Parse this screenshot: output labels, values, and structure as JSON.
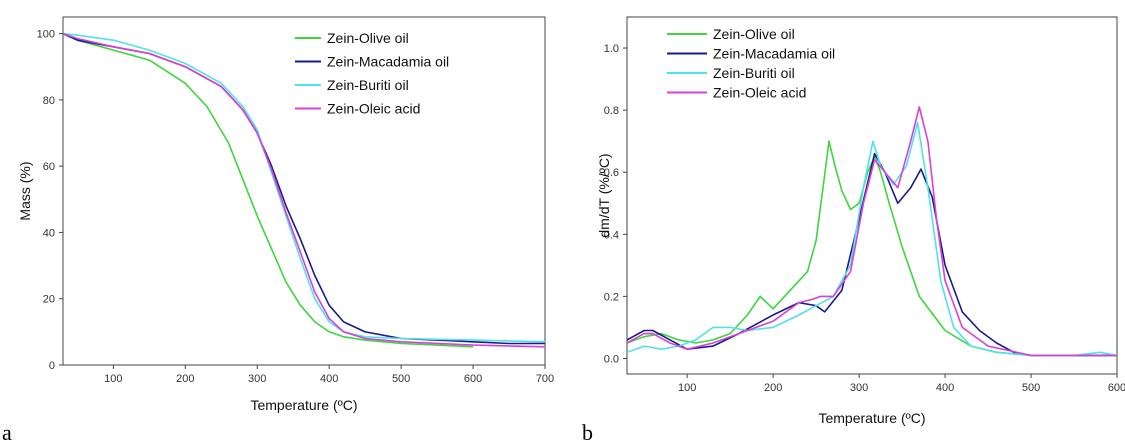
{
  "colors": {
    "Zein-Olive oil": "#3dd63d",
    "Zein-Macadamia oil": "#1a1a8c",
    "Zein-Buriti oil": "#4fe3e8",
    "Zein-Oleic acid": "#d93fd9"
  },
  "chart_data": [
    {
      "panel_label": "a",
      "type": "line",
      "title": "",
      "xlabel": "Temperature (ºC)",
      "ylabel": "Mass (%)",
      "xlim": [
        30,
        700
      ],
      "ylim": [
        0,
        105
      ],
      "xticks": [
        100,
        200,
        300,
        400,
        500,
        600,
        700
      ],
      "yticks": [
        0,
        20,
        40,
        60,
        80,
        100
      ],
      "grid": false,
      "legend_position": "top-right",
      "series": [
        {
          "name": "Zein-Olive oil",
          "x": [
            30,
            50,
            100,
            150,
            200,
            230,
            260,
            280,
            300,
            320,
            340,
            360,
            380,
            400,
            420,
            450,
            500,
            550,
            600
          ],
          "y": [
            100,
            98,
            95,
            92,
            85,
            78,
            67,
            56,
            45,
            35,
            25,
            18,
            13,
            10,
            8.5,
            7.5,
            6.5,
            6,
            5.5
          ]
        },
        {
          "name": "Zein-Macadamia oil",
          "x": [
            30,
            50,
            100,
            150,
            200,
            250,
            280,
            300,
            320,
            340,
            360,
            380,
            400,
            420,
            450,
            500,
            550,
            600,
            650,
            700
          ],
          "y": [
            100,
            98,
            96,
            94,
            90,
            84,
            77,
            70,
            60,
            48,
            38,
            27,
            18,
            13,
            10,
            8,
            7.5,
            7,
            6.5,
            6.5
          ]
        },
        {
          "name": "Zein-Buriti oil",
          "x": [
            30,
            50,
            100,
            150,
            200,
            250,
            280,
            300,
            320,
            340,
            360,
            380,
            400,
            420,
            450,
            500,
            600,
            700
          ],
          "y": [
            100,
            99.5,
            98,
            95,
            91,
            85,
            78,
            71,
            58,
            45,
            32,
            20,
            13,
            10,
            8.5,
            8,
            7.5,
            7
          ]
        },
        {
          "name": "Zein-Oleic acid",
          "x": [
            30,
            50,
            100,
            150,
            200,
            250,
            280,
            300,
            320,
            340,
            360,
            380,
            400,
            420,
            450,
            500,
            600,
            700
          ],
          "y": [
            100,
            98.5,
            96,
            94,
            90,
            84,
            77,
            70,
            59,
            46,
            34,
            22,
            14,
            10,
            8,
            7,
            6,
            5.5
          ]
        }
      ]
    },
    {
      "panel_label": "b",
      "type": "line",
      "title": "",
      "xlabel": "Temperature (ºC)",
      "ylabel": "dm/dT (%/ºC)",
      "xlim": [
        30,
        600
      ],
      "ylim": [
        -0.05,
        1.1
      ],
      "xticks": [
        100,
        200,
        300,
        400,
        500,
        600
      ],
      "yticks": [
        0.0,
        0.2,
        0.4,
        0.6,
        0.8,
        1.0
      ],
      "grid": false,
      "legend_position": "top-left",
      "series": [
        {
          "name": "Zein-Olive oil",
          "x": [
            30,
            50,
            70,
            90,
            110,
            130,
            150,
            170,
            185,
            200,
            220,
            240,
            250,
            258,
            265,
            272,
            280,
            290,
            300,
            310,
            318,
            325,
            335,
            350,
            370,
            400,
            430,
            460,
            500,
            550,
            600
          ],
          "y": [
            0.05,
            0.07,
            0.08,
            0.06,
            0.05,
            0.06,
            0.08,
            0.14,
            0.2,
            0.16,
            0.22,
            0.28,
            0.38,
            0.55,
            0.7,
            0.62,
            0.54,
            0.48,
            0.5,
            0.6,
            0.65,
            0.6,
            0.5,
            0.36,
            0.2,
            0.09,
            0.04,
            0.02,
            0.01,
            0.01,
            0.01
          ]
        },
        {
          "name": "Zein-Macadamia oil",
          "x": [
            30,
            50,
            60,
            80,
            100,
            130,
            160,
            200,
            230,
            250,
            260,
            280,
            300,
            318,
            330,
            345,
            360,
            372,
            385,
            400,
            420,
            440,
            460,
            480,
            500,
            550,
            600
          ],
          "y": [
            0.06,
            0.09,
            0.09,
            0.06,
            0.03,
            0.04,
            0.08,
            0.14,
            0.18,
            0.17,
            0.15,
            0.22,
            0.45,
            0.66,
            0.6,
            0.5,
            0.55,
            0.61,
            0.52,
            0.3,
            0.15,
            0.09,
            0.05,
            0.02,
            0.01,
            0.01,
            0.01
          ]
        },
        {
          "name": "Zein-Buriti oil",
          "x": [
            30,
            50,
            70,
            90,
            110,
            130,
            150,
            170,
            200,
            230,
            250,
            270,
            290,
            305,
            316,
            325,
            340,
            355,
            368,
            380,
            395,
            410,
            430,
            460,
            500,
            550,
            580,
            600
          ],
          "y": [
            0.02,
            0.04,
            0.03,
            0.04,
            0.06,
            0.1,
            0.1,
            0.09,
            0.1,
            0.14,
            0.17,
            0.2,
            0.3,
            0.55,
            0.7,
            0.62,
            0.56,
            0.62,
            0.76,
            0.55,
            0.25,
            0.1,
            0.04,
            0.02,
            0.01,
            0.01,
            0.02,
            0.01
          ]
        },
        {
          "name": "Zein-Oleic acid",
          "x": [
            30,
            50,
            60,
            80,
            100,
            130,
            160,
            200,
            230,
            245,
            255,
            270,
            290,
            305,
            318,
            330,
            345,
            360,
            370,
            380,
            390,
            400,
            420,
            450,
            500,
            550,
            600
          ],
          "y": [
            0.05,
            0.08,
            0.08,
            0.05,
            0.03,
            0.05,
            0.08,
            0.12,
            0.18,
            0.19,
            0.2,
            0.2,
            0.28,
            0.5,
            0.64,
            0.6,
            0.55,
            0.7,
            0.81,
            0.7,
            0.45,
            0.25,
            0.1,
            0.04,
            0.01,
            0.01,
            0.01
          ]
        }
      ]
    }
  ]
}
